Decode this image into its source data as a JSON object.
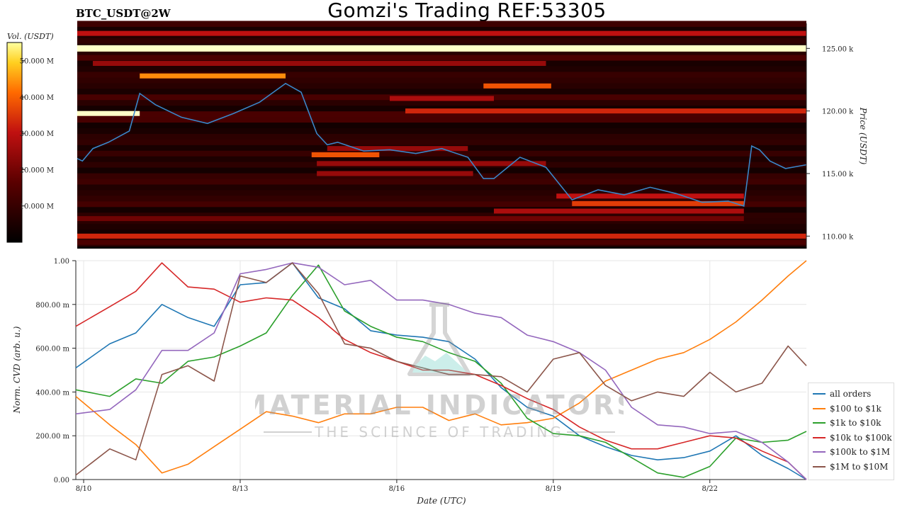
{
  "header": {
    "title": "Gomzi's Trading REF:53305",
    "symbol": "BTC_USDT@2W"
  },
  "watermark": {
    "brand": "MATERIAL INDICATORS",
    "tagline": "THE SCIENCE OF TRADING"
  },
  "colors": {
    "heatmap_low": "#000000",
    "heatmap_mid": "#c01010",
    "heatmap_high": "#ffff40",
    "price_line": "#3a86c8"
  },
  "chart_data": [
    {
      "type": "heatmap",
      "title": "BTC_USDT@2W",
      "colorbar_label": "Vol. (USDT)",
      "colorbar_ticks": [
        "10.000 M",
        "20.000 M",
        "30.000 M",
        "40.000 M",
        "50.000 M"
      ],
      "colorbar_values": [
        10,
        20,
        30,
        40,
        50
      ],
      "ylabel": "Price (USDT)",
      "ylim": [
        109000,
        127000
      ],
      "yticks": [
        110000,
        115000,
        120000,
        125000
      ],
      "ytick_labels": [
        "110.00 k",
        "115.00 k",
        "120.00 k",
        "125.00 k"
      ],
      "xlim": [
        0,
        14
      ],
      "bands": [
        {
          "price": 125000,
          "x0": 0,
          "x1": 14,
          "level": 1.0
        },
        {
          "price": 126200,
          "x0": 0,
          "x1": 14,
          "level": 0.55
        },
        {
          "price": 123800,
          "x0": 0.3,
          "x1": 9,
          "level": 0.45
        },
        {
          "price": 122800,
          "x0": 1.2,
          "x1": 4.0,
          "level": 0.8
        },
        {
          "price": 122000,
          "x0": 7.8,
          "x1": 9.1,
          "level": 0.7
        },
        {
          "price": 121000,
          "x0": 6.0,
          "x1": 8.0,
          "level": 0.5
        },
        {
          "price": 120000,
          "x0": 6.3,
          "x1": 14,
          "level": 0.6
        },
        {
          "price": 119800,
          "x0": 0,
          "x1": 1.2,
          "level": 1.0
        },
        {
          "price": 117000,
          "x0": 4.8,
          "x1": 7.5,
          "level": 0.45
        },
        {
          "price": 116500,
          "x0": 4.5,
          "x1": 5.8,
          "level": 0.7
        },
        {
          "price": 115800,
          "x0": 4.6,
          "x1": 9.0,
          "level": 0.45
        },
        {
          "price": 115000,
          "x0": 4.6,
          "x1": 7.6,
          "level": 0.45
        },
        {
          "price": 113200,
          "x0": 9.2,
          "x1": 12.8,
          "level": 0.55
        },
        {
          "price": 112600,
          "x0": 9.5,
          "x1": 12.8,
          "level": 0.65
        },
        {
          "price": 112000,
          "x0": 8.0,
          "x1": 12.8,
          "level": 0.5
        },
        {
          "price": 111400,
          "x0": 0,
          "x1": 12.8,
          "level": 0.35
        },
        {
          "price": 110000,
          "x0": 0,
          "x1": 14,
          "level": 0.6
        },
        {
          "price": 109500,
          "x0": 0,
          "x1": 14,
          "level": 0.25
        }
      ],
      "price_series": {
        "name": "price",
        "x": [
          0,
          0.1,
          0.3,
          0.6,
          1.0,
          1.2,
          1.5,
          2.0,
          2.5,
          3.0,
          3.5,
          4.0,
          4.3,
          4.6,
          4.8,
          5.0,
          5.5,
          6.0,
          6.5,
          7.0,
          7.5,
          7.8,
          8.0,
          8.5,
          9.0,
          9.5,
          10.0,
          10.5,
          11.0,
          11.5,
          12.0,
          12.5,
          12.8,
          12.95,
          13.1,
          13.3,
          13.6,
          14.0
        ],
        "y": [
          116200,
          116000,
          117000,
          117500,
          118400,
          121400,
          120500,
          119500,
          119000,
          119800,
          120700,
          122200,
          121500,
          118200,
          117300,
          117500,
          116800,
          116900,
          116600,
          117000,
          116300,
          114600,
          114600,
          116300,
          115500,
          112900,
          113700,
          113300,
          113900,
          113400,
          112700,
          112800,
          112400,
          117200,
          116900,
          116000,
          115400,
          115700
        ]
      }
    },
    {
      "type": "line",
      "xlabel": "Date (UTC)",
      "ylabel": "Norm. CVD (arb. u.)",
      "ylim": [
        0,
        1
      ],
      "yticks": [
        0,
        0.2,
        0.4,
        0.6,
        0.8,
        1.0
      ],
      "ytick_labels": [
        "0.00",
        "200.00 m",
        "400.00 m",
        "600.00 m",
        "800.00 m",
        "1.00"
      ],
      "xlim": [
        -0.15,
        13.85
      ],
      "xticks": [
        0,
        3,
        6,
        9,
        12
      ],
      "xtick_labels": [
        "8/10",
        "8/13",
        "8/16",
        "8/19",
        "8/22"
      ],
      "grid": true,
      "legend": "right",
      "x": [
        -0.15,
        0.5,
        1.0,
        1.5,
        2.0,
        2.5,
        3.0,
        3.5,
        4.0,
        4.5,
        5.0,
        5.5,
        6.0,
        6.5,
        7.0,
        7.5,
        8.0,
        8.5,
        9.0,
        9.5,
        10.0,
        10.5,
        11.0,
        11.5,
        12.0,
        12.5,
        13.0,
        13.5,
        13.85
      ],
      "series": [
        {
          "name": "all orders",
          "color": "#1f77b4",
          "values": [
            0.51,
            0.62,
            0.67,
            0.8,
            0.74,
            0.7,
            0.89,
            0.9,
            0.99,
            0.83,
            0.78,
            0.68,
            0.66,
            0.65,
            0.63,
            0.55,
            0.42,
            0.33,
            0.29,
            0.2,
            0.15,
            0.11,
            0.09,
            0.1,
            0.13,
            0.2,
            0.11,
            0.05,
            0.0
          ]
        },
        {
          "name": "$100 to $1k",
          "color": "#ff7f0e",
          "values": [
            0.38,
            0.25,
            0.16,
            0.03,
            0.07,
            0.15,
            0.23,
            0.31,
            0.29,
            0.26,
            0.3,
            0.3,
            0.33,
            0.33,
            0.27,
            0.3,
            0.25,
            0.26,
            0.28,
            0.35,
            0.45,
            0.5,
            0.55,
            0.58,
            0.64,
            0.72,
            0.82,
            0.93,
            1.0
          ]
        },
        {
          "name": "$1k to $10k",
          "color": "#2ca02c",
          "values": [
            0.41,
            0.38,
            0.46,
            0.44,
            0.54,
            0.56,
            0.61,
            0.67,
            0.84,
            0.98,
            0.77,
            0.7,
            0.65,
            0.63,
            0.58,
            0.54,
            0.44,
            0.28,
            0.21,
            0.2,
            0.17,
            0.1,
            0.03,
            0.01,
            0.06,
            0.19,
            0.17,
            0.18,
            0.22
          ]
        },
        {
          "name": "$10k to $100k",
          "color": "#d62728",
          "values": [
            0.7,
            0.79,
            0.86,
            0.99,
            0.88,
            0.87,
            0.81,
            0.83,
            0.82,
            0.74,
            0.64,
            0.58,
            0.54,
            0.5,
            0.5,
            0.48,
            0.43,
            0.37,
            0.32,
            0.24,
            0.18,
            0.14,
            0.14,
            0.17,
            0.2,
            0.19,
            0.13,
            0.08,
            0.0
          ]
        },
        {
          "name": "$100k to $1M",
          "color": "#9467bd",
          "values": [
            0.3,
            0.32,
            0.41,
            0.59,
            0.59,
            0.67,
            0.94,
            0.96,
            0.99,
            0.97,
            0.89,
            0.91,
            0.82,
            0.82,
            0.8,
            0.76,
            0.74,
            0.66,
            0.63,
            0.58,
            0.5,
            0.33,
            0.25,
            0.24,
            0.21,
            0.22,
            0.17,
            0.08,
            0.0
          ]
        },
        {
          "name": "$1M to $10M",
          "color": "#8c564b",
          "values": [
            0.02,
            0.14,
            0.09,
            0.48,
            0.52,
            0.45,
            0.93,
            0.9,
            0.99,
            0.85,
            0.62,
            0.6,
            0.54,
            0.51,
            0.48,
            0.48,
            0.47,
            0.4,
            0.55,
            0.58,
            0.43,
            0.36,
            0.4,
            0.38,
            0.49,
            0.4,
            0.44,
            0.61,
            0.52
          ]
        }
      ]
    }
  ]
}
